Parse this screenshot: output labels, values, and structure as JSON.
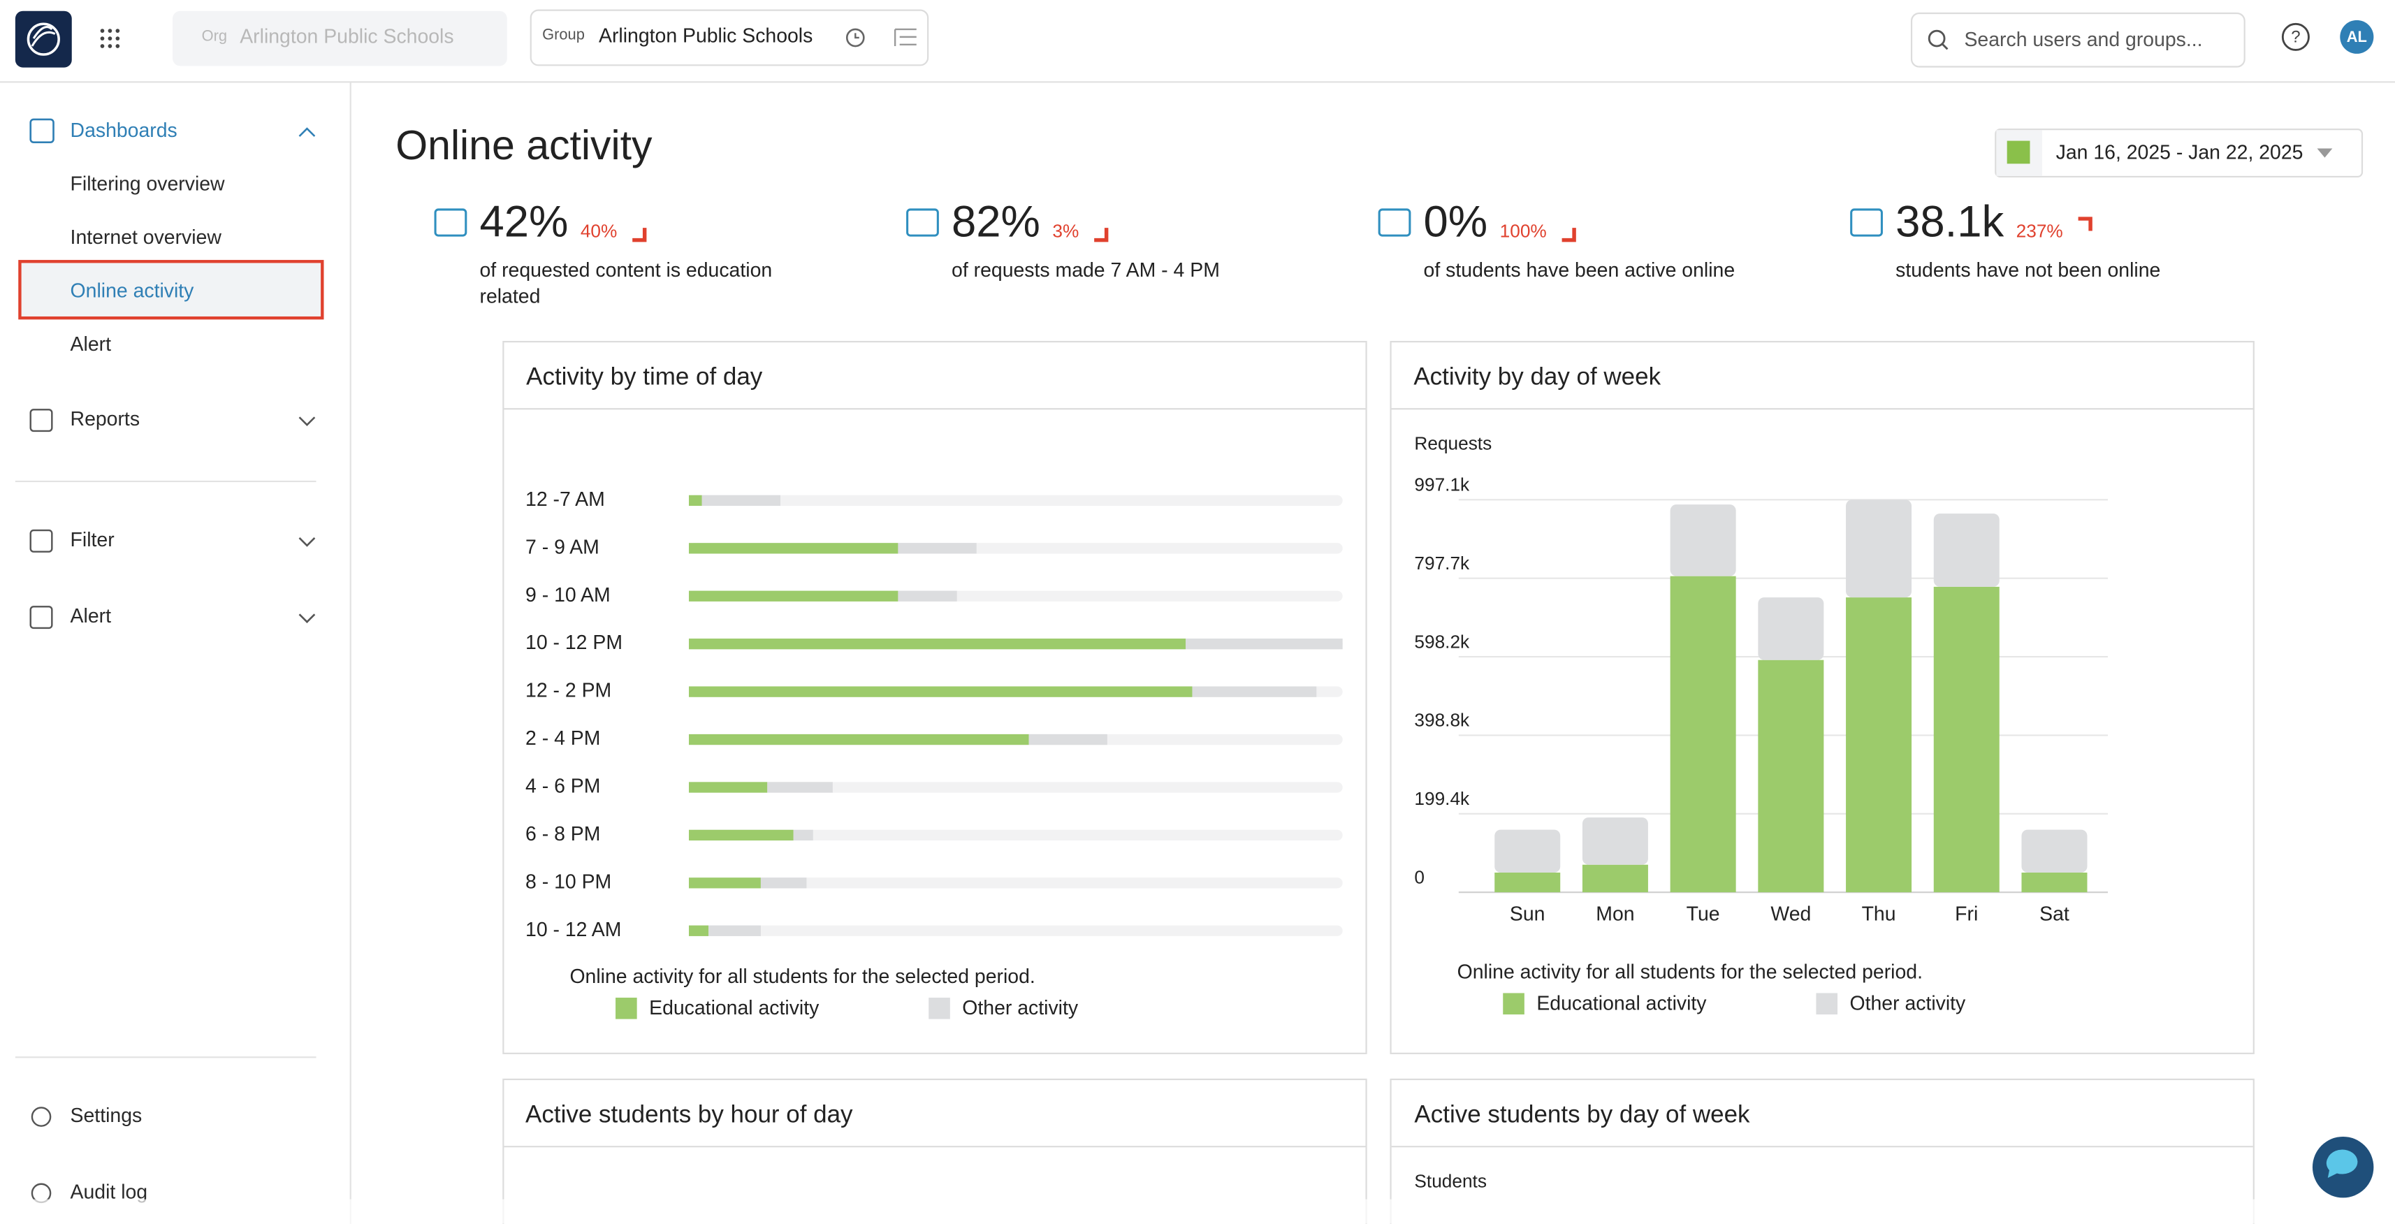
{
  "nav": {
    "org_label": "Org",
    "org_value": "Arlington Public Schools",
    "group_label": "Group",
    "group_value": "Arlington Public Schools",
    "search_placeholder": "Search users and groups...",
    "avatar": "AL"
  },
  "sidebar": {
    "dashboards": "Dashboards",
    "dashboard_items": [
      "Filtering overview",
      "Internet overview",
      "Online activity",
      "Alert"
    ],
    "menu": [
      "Reports",
      "Filter",
      "Alert"
    ],
    "footer": [
      "Settings",
      "Audit log"
    ]
  },
  "page": {
    "title": "Online activity",
    "date_range": "Jan 16, 2025 - Jan 22, 2025"
  },
  "kpis": [
    {
      "value": "42%",
      "change": "40%",
      "text": "of requested content is education related"
    },
    {
      "value": "82%",
      "change": "3%",
      "text": "of requests made 7 AM - 4 PM"
    },
    {
      "value": "0%",
      "change": "100%",
      "text": "of students have been active online"
    },
    {
      "value": "38.1k",
      "change": "237%",
      "text": "students have not been online"
    }
  ],
  "chart_data": [
    {
      "type": "bar",
      "orientation": "horizontal",
      "stacked": true,
      "title": "Activity by time of day",
      "categories": [
        "12 -7 AM",
        "7 - 9 AM",
        "9 - 10 AM",
        "10 - 12 PM",
        "12 - 2 PM",
        "2 - 4 PM",
        "4 - 6 PM",
        "6 - 8 PM",
        "8 - 10 PM",
        "10 - 12 AM"
      ],
      "series": [
        {
          "name": "Educational activity",
          "color": "#9ccb6b",
          "values": [
            2,
            32,
            32,
            76,
            77,
            52,
            12,
            16,
            11,
            3
          ]
        },
        {
          "name": "Other activity",
          "color": "#dcdddf",
          "values": [
            12,
            12,
            9,
            24,
            19,
            12,
            10,
            3,
            7,
            8
          ]
        }
      ],
      "xlim": [
        0,
        100
      ],
      "caption": "Online activity for all students for the selected period."
    },
    {
      "type": "bar",
      "orientation": "vertical",
      "stacked": true,
      "title": "Activity by day of week",
      "y_label": "Requests",
      "categories": [
        "Sun",
        "Mon",
        "Tue",
        "Wed",
        "Thu",
        "Fri",
        "Sat"
      ],
      "series": [
        {
          "name": "Educational activity",
          "color": "#9ccb6b",
          "values": [
            50000,
            70000,
            803000,
            590000,
            749000,
            776000,
            50000
          ]
        },
        {
          "name": "Other activity",
          "color": "#dcdddf",
          "values": [
            109000,
            120000,
            182000,
            159000,
            248000,
            186000,
            109000
          ]
        }
      ],
      "ylim": [
        0,
        997100
      ],
      "yticks": [
        0,
        {
          "value": 199400,
          "label": "199.4k"
        },
        {
          "value": 398800,
          "label": "398.8k"
        },
        {
          "value": 598200,
          "label": "598.2k"
        },
        {
          "value": 797700,
          "label": "797.7k"
        },
        {
          "value": 997100,
          "label": "997.1k"
        }
      ],
      "grid": true,
      "caption": "Online activity for all students for the selected period."
    }
  ],
  "panels": [
    {
      "title": "Active students by hour of day"
    },
    {
      "title": "Active students by day of week",
      "y_label": "Students"
    }
  ]
}
